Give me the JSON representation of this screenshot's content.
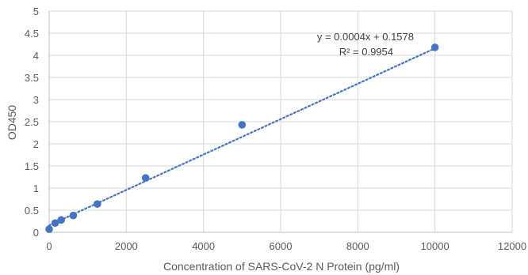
{
  "chart_data": {
    "type": "scatter",
    "xlabel": "Concentration of SARS-CoV-2 N Protein (pg/ml)",
    "ylabel": "OD450",
    "xlim": [
      0,
      12000
    ],
    "ylim": [
      0,
      5
    ],
    "x_ticks": [
      0,
      2000,
      4000,
      6000,
      8000,
      10000,
      12000
    ],
    "y_ticks": [
      0,
      0.5,
      1,
      1.5,
      2,
      2.5,
      3,
      3.5,
      4,
      4.5,
      5
    ],
    "y_tick_labels": [
      "0",
      "0.5",
      "1",
      "1.5",
      "2",
      "2.5",
      "3",
      "3.5",
      "4",
      "4.5",
      "5"
    ],
    "grid": true,
    "legend": "none",
    "series": [
      {
        "x": [
          0,
          156,
          312,
          625,
          1250,
          2500,
          5000,
          10000
        ],
        "y": [
          0.07,
          0.21,
          0.28,
          0.38,
          0.64,
          1.23,
          2.43,
          4.18
        ],
        "color": "#4472C4"
      }
    ],
    "trendline": {
      "type": "linear",
      "slope": 0.0004,
      "intercept": 0.1578,
      "x_range": [
        0,
        10000
      ],
      "equation": "y = 0.0004x + 0.1578",
      "r_squared": "R² = 0.9954",
      "color": "#4472C4",
      "style": "dotted"
    }
  }
}
